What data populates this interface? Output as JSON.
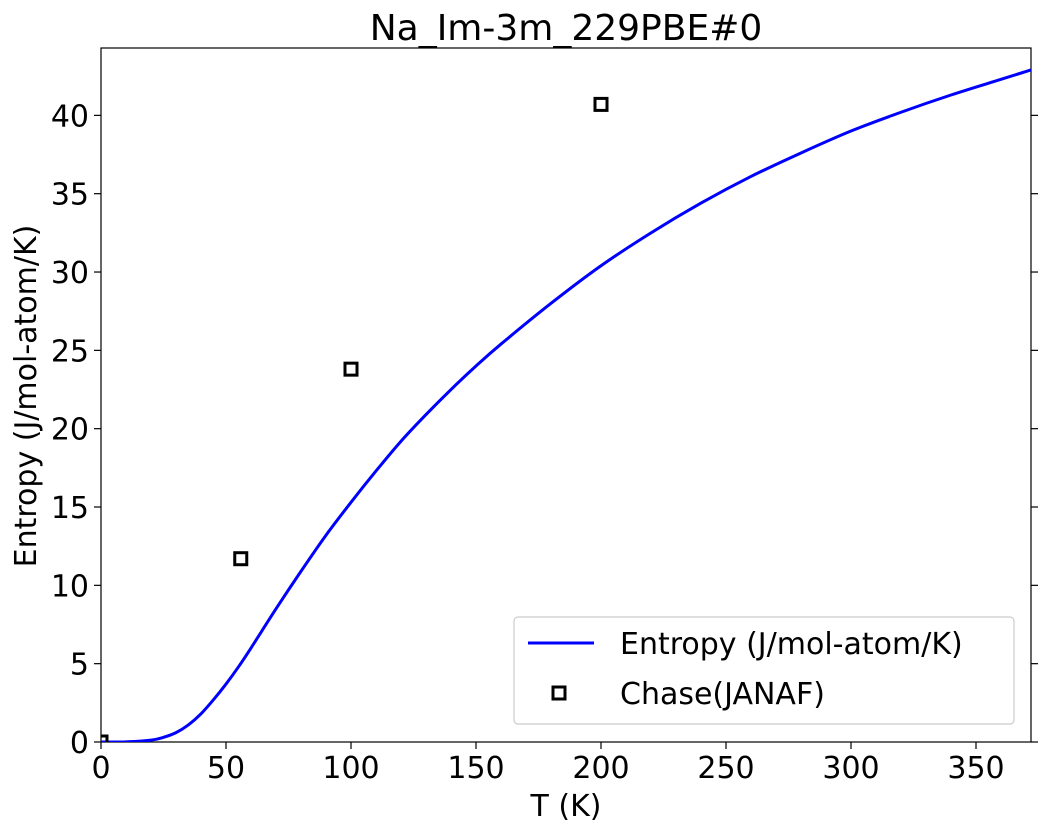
{
  "chart_data": {
    "type": "line",
    "title": "Na_Im-3m_229PBE#0",
    "xlabel": "T (K)",
    "ylabel": "Entropy (J/mol-atom/K)",
    "xlim": [
      0,
      372
    ],
    "ylim": [
      0,
      44.3
    ],
    "xticks": [
      0,
      50,
      100,
      150,
      200,
      250,
      300,
      350
    ],
    "yticks": [
      0,
      5,
      10,
      15,
      20,
      25,
      30,
      35,
      40
    ],
    "grid": false,
    "legend_position": "lower-right",
    "series": [
      {
        "name": "Entropy (J/mol-atom/K)",
        "style": "line",
        "color": "#0000ff",
        "x": [
          0,
          10,
          20,
          25,
          30,
          35,
          40,
          45,
          50,
          55,
          60,
          70,
          80,
          90,
          100,
          110,
          120,
          130,
          140,
          150,
          160,
          180,
          200,
          220,
          240,
          260,
          280,
          300,
          320,
          340,
          360,
          372
        ],
        "y": [
          0,
          0.01,
          0.12,
          0.3,
          0.6,
          1.1,
          1.8,
          2.7,
          3.7,
          4.8,
          6.0,
          8.5,
          10.9,
          13.2,
          15.3,
          17.3,
          19.2,
          20.9,
          22.5,
          24.0,
          25.4,
          28.0,
          30.4,
          32.5,
          34.4,
          36.1,
          37.6,
          39.0,
          40.2,
          41.3,
          42.3,
          42.9
        ]
      },
      {
        "name": "Chase(JANAF)",
        "style": "marker-square",
        "color": "#000000",
        "x": [
          0,
          55.9,
          100,
          200
        ],
        "y": [
          0,
          11.7,
          23.8,
          40.7
        ]
      }
    ]
  }
}
